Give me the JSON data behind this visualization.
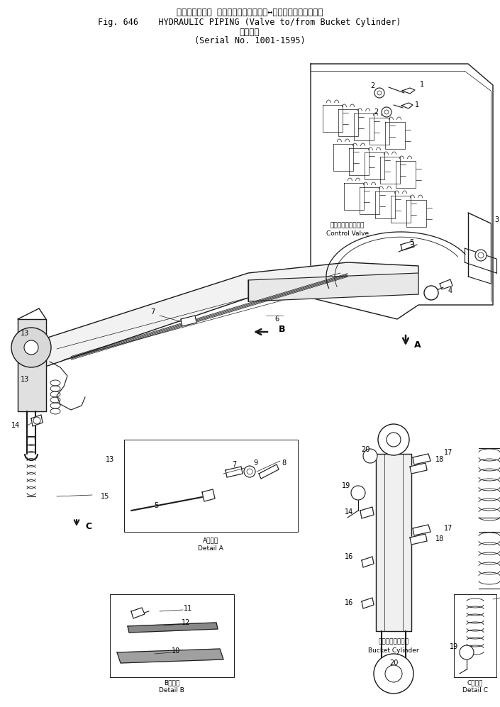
{
  "title_line0": "ハイドロリック パイピング　バルブ　↔　バケット　シリンダ",
  "title_line1": "Fig. 646    HYDRAULIC PIPING (Valve to/from Bucket Cylinder)",
  "title_line2_jp": "適用号機",
  "title_line2_en": "(Serial No. 1001-1595)",
  "bg_color": "#ffffff",
  "line_color": "#1a1a1a",
  "fig_width": 7.05,
  "fig_height": 9.97,
  "dpi": 100
}
